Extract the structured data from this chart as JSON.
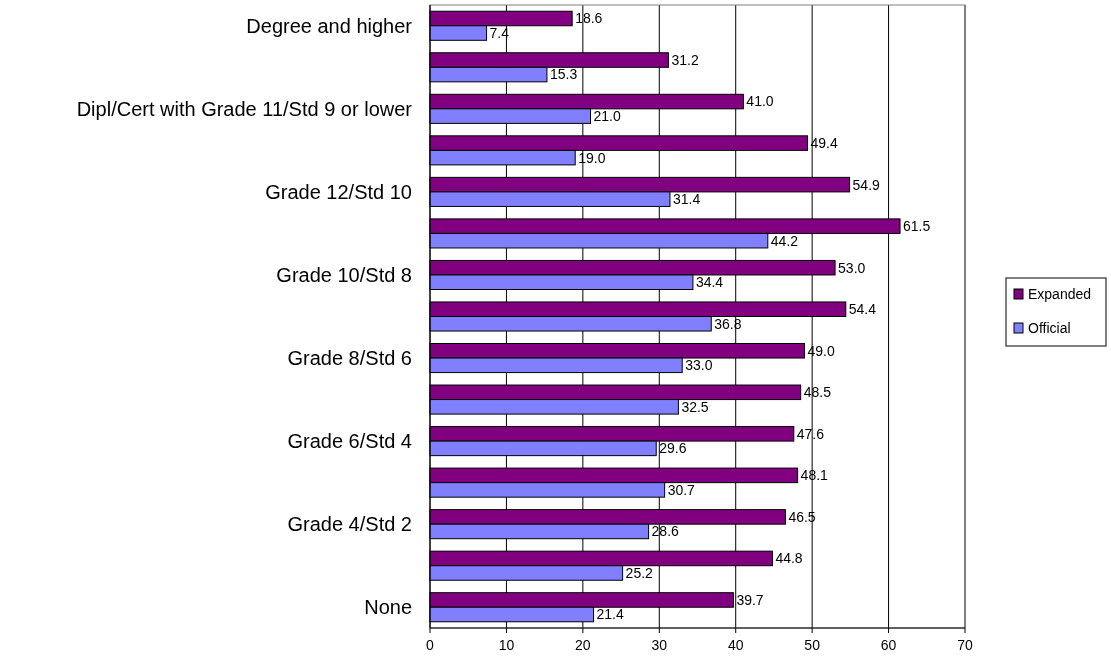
{
  "chart_data": {
    "type": "bar",
    "orientation": "horizontal",
    "categories": [
      "Degree and higher",
      null,
      "Dipl/Cert with Grade 11/Std 9 or lower",
      null,
      "Grade 12/Std 10",
      null,
      "Grade 10/Std 8",
      null,
      "Grade 8/Std 6",
      null,
      "Grade 6/Std 4",
      null,
      "Grade 4/Std 2",
      null,
      "None"
    ],
    "series": [
      {
        "name": "Expanded",
        "color": "#800080",
        "values": [
          18.6,
          31.2,
          41.0,
          49.4,
          54.9,
          61.5,
          53.0,
          54.4,
          49.0,
          48.5,
          47.6,
          48.1,
          46.5,
          44.8,
          39.7
        ],
        "value_labels": [
          "18.6",
          "31.2",
          "41.0",
          "49.4",
          "54.9",
          "61.5",
          "53.0",
          "54.4",
          "49.0",
          "48.5",
          "47.6",
          "48.1",
          "46.5",
          "44.8",
          "39.7"
        ]
      },
      {
        "name": "Official",
        "color": "#8080ff",
        "values": [
          7.4,
          15.3,
          21.0,
          19.0,
          31.4,
          44.2,
          34.4,
          36.8,
          33.0,
          32.5,
          29.6,
          30.7,
          28.6,
          25.2,
          21.4
        ],
        "value_labels": [
          "7.4",
          "15.3",
          "21.0",
          "19.0",
          "31.4",
          "44.2",
          "34.4",
          "36.8",
          "33.0",
          "32.5",
          "29.6",
          "30.7",
          "28.6",
          "25.2",
          "21.4"
        ]
      }
    ],
    "xlim": [
      0,
      70
    ],
    "xticks": [
      0,
      10,
      20,
      30,
      40,
      50,
      60,
      70
    ],
    "grid": "x",
    "legend": "right"
  }
}
